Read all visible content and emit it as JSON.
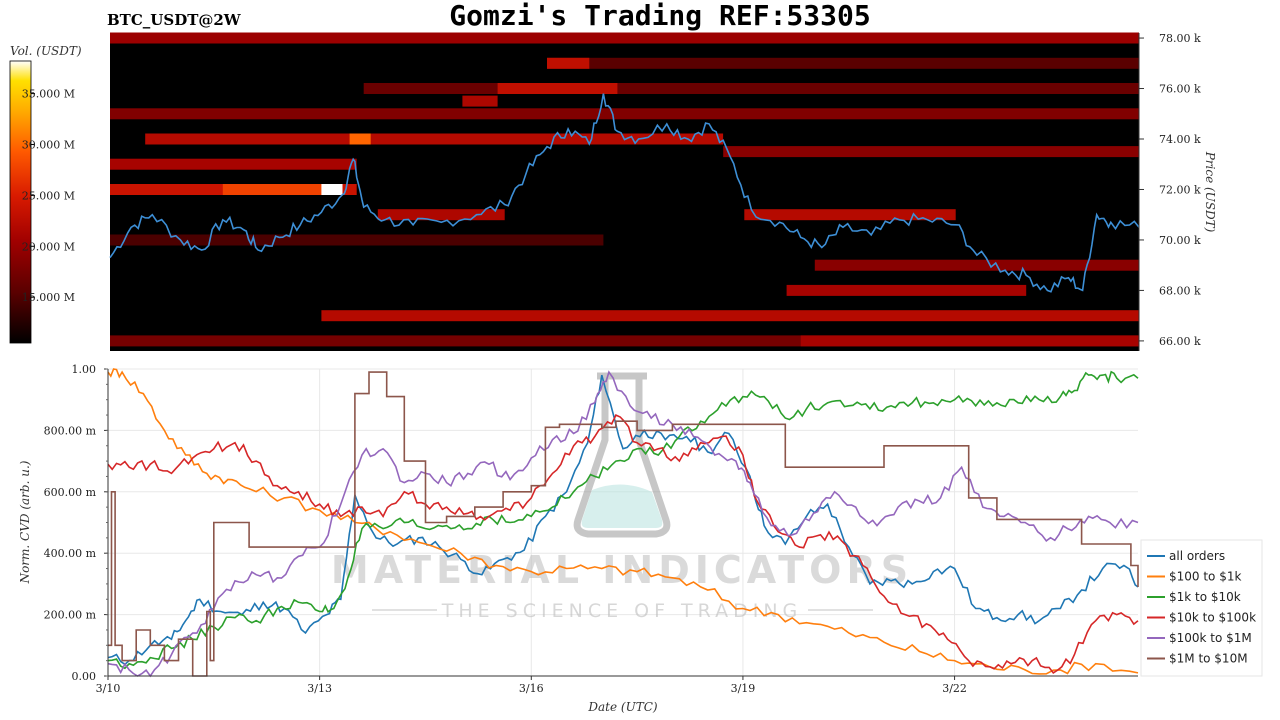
{
  "header": {
    "title": "Gomzi's Trading REF:53305",
    "symbol": "BTC_USDT@2W"
  },
  "watermark": {
    "brand": "MATERIAL INDICATORS",
    "tagline": "THE SCIENCE OF TRADING"
  },
  "colorbar": {
    "label": "Vol. (USDT)",
    "ticks": [
      "15.000 M",
      "20.000 M",
      "25.000 M",
      "30.000 M",
      "35.000 M"
    ],
    "tick_values": [
      15,
      20,
      25,
      30,
      35
    ],
    "range": [
      10.5,
      38.2
    ]
  },
  "chart_data": [
    {
      "type": "heatmap",
      "name": "orderbook-liquidity",
      "ylabel": "Price (USDT)",
      "ylim": [
        65600,
        78200
      ],
      "y_ticks": [
        "66.00 k",
        "68.00 k",
        "70.00 k",
        "72.00 k",
        "74.00 k",
        "76.00 k",
        "78.00 k"
      ],
      "y_tick_values": [
        66000,
        68000,
        70000,
        72000,
        74000,
        76000,
        78000
      ],
      "x_range_days": [
        0,
        14.6
      ],
      "colormap": [
        "#000000",
        "#5a0000",
        "#a00000",
        "#d81a00",
        "#ff5a00",
        "#ffaa00",
        "#ffe000",
        "#ffffff"
      ],
      "bands": [
        {
          "price": 78000,
          "start": 0.0,
          "end": 14.6,
          "level": 0.35
        },
        {
          "price": 77000,
          "start": 6.2,
          "end": 14.6,
          "level": 0.18
        },
        {
          "price": 77000,
          "start": 6.2,
          "end": 6.8,
          "level": 0.45
        },
        {
          "price": 76000,
          "start": 3.6,
          "end": 14.6,
          "level": 0.22
        },
        {
          "price": 76000,
          "start": 5.5,
          "end": 7.2,
          "level": 0.45
        },
        {
          "price": 75500,
          "start": 5.0,
          "end": 5.5,
          "level": 0.4
        },
        {
          "price": 75000,
          "start": 0.0,
          "end": 14.6,
          "level": 0.28
        },
        {
          "price": 74000,
          "start": 0.5,
          "end": 8.7,
          "level": 0.42
        },
        {
          "price": 74000,
          "start": 3.4,
          "end": 3.7,
          "level": 0.7
        },
        {
          "price": 73500,
          "start": 8.7,
          "end": 14.6,
          "level": 0.3
        },
        {
          "price": 73000,
          "start": 0.0,
          "end": 3.5,
          "level": 0.38
        },
        {
          "price": 72000,
          "start": 0.0,
          "end": 3.5,
          "level": 0.48
        },
        {
          "price": 72000,
          "start": 1.6,
          "end": 3.0,
          "level": 0.62
        },
        {
          "price": 72000,
          "start": 3.0,
          "end": 3.3,
          "level": 1.0
        },
        {
          "price": 71000,
          "start": 3.8,
          "end": 5.6,
          "level": 0.4
        },
        {
          "price": 71000,
          "start": 9.0,
          "end": 12.0,
          "level": 0.42
        },
        {
          "price": 70000,
          "start": 0.0,
          "end": 7.0,
          "level": 0.15
        },
        {
          "price": 69000,
          "start": 10.0,
          "end": 14.6,
          "level": 0.3
        },
        {
          "price": 68000,
          "start": 9.6,
          "end": 13.0,
          "level": 0.38
        },
        {
          "price": 67000,
          "start": 3.0,
          "end": 14.6,
          "level": 0.42
        },
        {
          "price": 66000,
          "start": 0.0,
          "end": 14.6,
          "level": 0.25
        },
        {
          "price": 66000,
          "start": 9.8,
          "end": 14.6,
          "level": 0.38
        }
      ],
      "price_series": {
        "name": "price",
        "x": [
          0,
          0.3,
          0.6,
          1.0,
          1.3,
          1.6,
          1.9,
          2.1,
          2.4,
          2.7,
          3.0,
          3.3,
          3.45,
          3.6,
          3.9,
          4.3,
          4.7,
          5.2,
          5.6,
          5.9,
          6.2,
          6.5,
          6.8,
          7.0,
          7.2,
          7.5,
          7.9,
          8.2,
          8.5,
          8.8,
          9.1,
          9.5,
          9.8,
          10.1,
          10.4,
          10.8,
          11.2,
          11.6,
          12.0,
          12.3,
          12.7,
          13.0,
          13.3,
          13.6,
          13.8,
          14.0,
          14.2,
          14.6
        ],
        "y": [
          69300,
          70500,
          71000,
          70000,
          69600,
          70800,
          70400,
          69600,
          70100,
          70600,
          71100,
          71800,
          73200,
          71300,
          70800,
          70600,
          70700,
          71000,
          71400,
          72600,
          73700,
          74400,
          73800,
          75800,
          74300,
          74000,
          74600,
          74000,
          74600,
          73300,
          71200,
          70700,
          70100,
          69700,
          70500,
          70200,
          70800,
          70800,
          70600,
          69400,
          68800,
          68600,
          68000,
          68500,
          68000,
          71000,
          70700,
          70500
        ]
      }
    },
    {
      "type": "line",
      "name": "normalized-cvd",
      "xlabel": "Date (UTC)",
      "ylabel": "Norm. CVD (arb. u.)",
      "ylim": [
        0,
        1
      ],
      "xlim": [
        0,
        14.6
      ],
      "x_ticks": [
        "3/10",
        "3/13",
        "3/16",
        "3/19",
        "3/22"
      ],
      "x_tick_values": [
        0,
        3,
        6,
        9,
        12
      ],
      "y_ticks": [
        "0.00",
        "200.00 m",
        "400.00 m",
        "600.00 m",
        "800.00 m",
        "1.00"
      ],
      "y_tick_values": [
        0,
        0.2,
        0.4,
        0.6,
        0.8,
        1.0
      ],
      "grid": true,
      "legend": "right",
      "series": [
        {
          "name": "all orders",
          "color": "#1f77b4",
          "step": false,
          "x": [
            0,
            0.3,
            0.6,
            0.9,
            1.1,
            1.3,
            1.6,
            1.9,
            2.2,
            2.5,
            2.8,
            3.1,
            3.3,
            3.5,
            3.8,
            4.1,
            4.4,
            4.7,
            5.0,
            5.3,
            5.6,
            5.9,
            6.2,
            6.5,
            6.8,
            7.0,
            7.3,
            7.6,
            7.9,
            8.2,
            8.5,
            8.8,
            9.1,
            9.3,
            9.6,
            9.9,
            10.2,
            10.5,
            10.8,
            11.1,
            11.4,
            11.7,
            12.0,
            12.3,
            12.6,
            12.9,
            13.2,
            13.5,
            13.8,
            14.1,
            14.4,
            14.6
          ],
          "y": [
            0.06,
            0.05,
            0.1,
            0.12,
            0.18,
            0.25,
            0.21,
            0.2,
            0.24,
            0.22,
            0.14,
            0.2,
            0.25,
            0.59,
            0.45,
            0.43,
            0.45,
            0.42,
            0.38,
            0.33,
            0.38,
            0.41,
            0.52,
            0.6,
            0.76,
            0.98,
            0.74,
            0.8,
            0.77,
            0.78,
            0.73,
            0.79,
            0.65,
            0.49,
            0.43,
            0.52,
            0.56,
            0.42,
            0.3,
            0.31,
            0.3,
            0.34,
            0.35,
            0.22,
            0.19,
            0.2,
            0.18,
            0.22,
            0.28,
            0.35,
            0.36,
            0.29
          ]
        },
        {
          "name": "$100 to $1k",
          "color": "#ff7f0e",
          "step": false,
          "x": [
            0,
            0.2,
            0.5,
            0.8,
            1.1,
            1.4,
            1.7,
            2.0,
            2.5,
            3.0,
            3.5,
            4.0,
            4.5,
            5.0,
            5.5,
            6.0,
            6.5,
            7.0,
            7.5,
            8.0,
            8.5,
            9.0,
            9.5,
            10.0,
            10.5,
            11.0,
            11.5,
            12.0,
            12.5,
            13.0,
            13.5,
            14.0,
            14.6
          ],
          "y": [
            0.99,
            0.99,
            0.92,
            0.8,
            0.72,
            0.66,
            0.64,
            0.61,
            0.58,
            0.54,
            0.5,
            0.47,
            0.43,
            0.4,
            0.36,
            0.34,
            0.35,
            0.35,
            0.34,
            0.32,
            0.28,
            0.22,
            0.2,
            0.17,
            0.14,
            0.11,
            0.08,
            0.05,
            0.03,
            0.02,
            0.02,
            0.04,
            0.01
          ]
        },
        {
          "name": "$1k to $10k",
          "color": "#2ca02c",
          "step": false,
          "x": [
            0,
            0.3,
            0.6,
            0.9,
            1.2,
            1.5,
            1.8,
            2.1,
            2.4,
            2.7,
            3.0,
            3.2,
            3.4,
            3.6,
            3.9,
            4.2,
            4.5,
            4.8,
            5.1,
            5.4,
            5.7,
            6.0,
            6.3,
            6.6,
            6.9,
            7.2,
            7.5,
            7.8,
            8.1,
            8.4,
            8.7,
            9.0,
            9.3,
            9.6,
            9.9,
            10.2,
            10.5,
            10.8,
            11.1,
            11.4,
            11.7,
            12.0,
            12.3,
            12.6,
            12.9,
            13.2,
            13.5,
            13.7,
            13.9,
            14.1,
            14.3,
            14.6
          ],
          "y": [
            0.05,
            0.04,
            0.06,
            0.09,
            0.12,
            0.16,
            0.19,
            0.18,
            0.22,
            0.24,
            0.21,
            0.22,
            0.32,
            0.48,
            0.48,
            0.5,
            0.48,
            0.49,
            0.48,
            0.52,
            0.5,
            0.52,
            0.55,
            0.6,
            0.65,
            0.7,
            0.74,
            0.72,
            0.78,
            0.83,
            0.89,
            0.91,
            0.91,
            0.84,
            0.87,
            0.89,
            0.88,
            0.87,
            0.88,
            0.89,
            0.89,
            0.9,
            0.88,
            0.89,
            0.89,
            0.9,
            0.91,
            0.93,
            0.98,
            0.98,
            0.97,
            0.97
          ]
        },
        {
          "name": "$10k to $100k",
          "color": "#d62728",
          "step": false,
          "x": [
            0,
            0.3,
            0.6,
            0.9,
            1.2,
            1.5,
            1.8,
            2.1,
            2.4,
            2.7,
            3.0,
            3.3,
            3.6,
            3.9,
            4.2,
            4.5,
            4.8,
            5.1,
            5.4,
            5.7,
            6.0,
            6.3,
            6.6,
            6.9,
            7.2,
            7.5,
            7.8,
            8.1,
            8.4,
            8.7,
            9.0,
            9.2,
            9.5,
            9.8,
            10.1,
            10.4,
            10.7,
            11.0,
            11.3,
            11.6,
            11.9,
            12.2,
            12.5,
            12.8,
            13.1,
            13.4,
            13.7,
            14.0,
            14.3,
            14.6
          ],
          "y": [
            0.69,
            0.68,
            0.69,
            0.66,
            0.71,
            0.74,
            0.76,
            0.7,
            0.62,
            0.6,
            0.56,
            0.52,
            0.55,
            0.52,
            0.6,
            0.56,
            0.55,
            0.53,
            0.52,
            0.54,
            0.58,
            0.66,
            0.75,
            0.78,
            0.85,
            0.76,
            0.74,
            0.7,
            0.76,
            0.78,
            0.72,
            0.57,
            0.47,
            0.42,
            0.46,
            0.44,
            0.36,
            0.26,
            0.2,
            0.17,
            0.12,
            0.05,
            0.03,
            0.04,
            0.05,
            0.01,
            0.07,
            0.18,
            0.2,
            0.18
          ]
        },
        {
          "name": "$100k to $1M",
          "color": "#9467bd",
          "step": false,
          "x": [
            0,
            0.3,
            0.6,
            0.9,
            1.2,
            1.5,
            1.8,
            2.1,
            2.4,
            2.7,
            3.0,
            3.3,
            3.6,
            3.9,
            4.2,
            4.5,
            4.8,
            5.1,
            5.4,
            5.7,
            6.0,
            6.3,
            6.6,
            6.9,
            7.1,
            7.4,
            7.7,
            8.0,
            8.3,
            8.6,
            8.9,
            9.1,
            9.4,
            9.7,
            10.0,
            10.3,
            10.6,
            10.9,
            11.2,
            11.5,
            11.8,
            12.1,
            12.4,
            12.7,
            13.0,
            13.3,
            13.6,
            13.9,
            14.2,
            14.6
          ],
          "y": [
            0.04,
            0.02,
            0.0,
            0.07,
            0.14,
            0.22,
            0.31,
            0.33,
            0.32,
            0.39,
            0.42,
            0.56,
            0.72,
            0.74,
            0.63,
            0.66,
            0.63,
            0.66,
            0.69,
            0.64,
            0.71,
            0.77,
            0.79,
            0.89,
            0.99,
            0.88,
            0.84,
            0.82,
            0.78,
            0.72,
            0.7,
            0.63,
            0.49,
            0.46,
            0.53,
            0.6,
            0.55,
            0.49,
            0.55,
            0.57,
            0.58,
            0.68,
            0.55,
            0.52,
            0.5,
            0.44,
            0.48,
            0.52,
            0.5,
            0.5
          ]
        },
        {
          "name": "$1M to $10M",
          "color": "#8c564b",
          "step": true,
          "x": [
            0,
            0.05,
            0.1,
            0.2,
            0.4,
            0.6,
            0.8,
            1.0,
            1.2,
            1.4,
            1.45,
            1.5,
            1.8,
            2.0,
            2.8,
            3.2,
            3.5,
            3.7,
            3.95,
            4.2,
            4.5,
            4.8,
            5.2,
            5.6,
            6.0,
            6.2,
            6.4,
            6.7,
            7.0,
            7.2,
            7.5,
            8.0,
            8.6,
            8.8,
            9.2,
            9.6,
            10.0,
            10.3,
            10.6,
            11.0,
            11.4,
            11.8,
            12.0,
            12.2,
            12.6,
            13.0,
            13.4,
            13.8,
            14.2,
            14.5,
            14.6
          ],
          "y": [
            0.1,
            0.6,
            0.1,
            0.05,
            0.15,
            0.1,
            0.05,
            0.12,
            0.0,
            0.21,
            0.05,
            0.5,
            0.5,
            0.42,
            0.42,
            0.42,
            0.92,
            0.99,
            0.91,
            0.7,
            0.5,
            0.52,
            0.55,
            0.6,
            0.62,
            0.81,
            0.82,
            0.82,
            0.81,
            0.83,
            0.8,
            0.82,
            0.82,
            0.82,
            0.82,
            0.68,
            0.68,
            0.68,
            0.68,
            0.75,
            0.75,
            0.75,
            0.75,
            0.58,
            0.51,
            0.51,
            0.51,
            0.43,
            0.43,
            0.36,
            0.29
          ]
        }
      ]
    }
  ]
}
